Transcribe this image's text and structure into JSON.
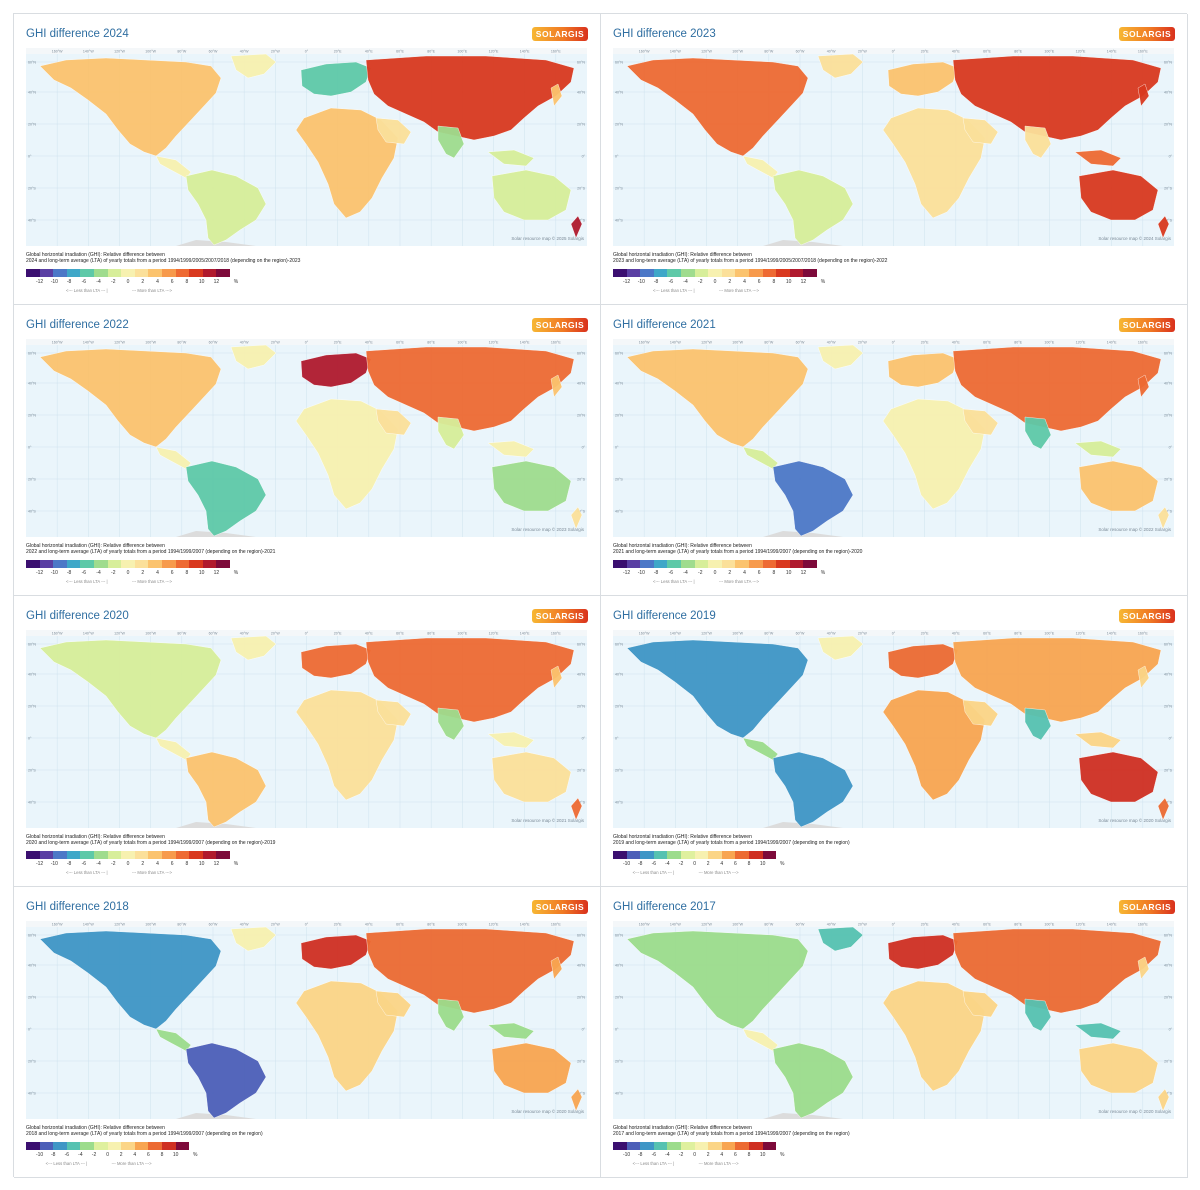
{
  "brand_label": "SOLARGIS",
  "palette_12": [
    "#3b0f70",
    "#5a3fa3",
    "#4c78c7",
    "#3fa7c8",
    "#5ec9a8",
    "#9fdc8e",
    "#d7ee9a",
    "#f7f1b0",
    "#fbe09a",
    "#fbc36e",
    "#f79a4c",
    "#ee6a33",
    "#d9391f",
    "#b01a2e",
    "#7d0a3a"
  ],
  "palette_10": [
    "#3b0f70",
    "#4c5fb8",
    "#3f96c6",
    "#56c2b1",
    "#9cdc8c",
    "#dff09e",
    "#f7f1b0",
    "#fbd587",
    "#f8a551",
    "#ec6a32",
    "#cf2f22",
    "#7d0a3a"
  ],
  "panels": [
    {
      "title": "GHI difference 2024",
      "desc1": "Global horizontal irradiation (GHI): Relative difference between",
      "desc2": "2024 and long-term average (LTA) of yearly totals from a period 1994/1999/2005/2007/2018 (depending on the region)-2023",
      "credit": "Solar resource map © 2025 Solargis",
      "ticks": [
        "-12",
        "-10",
        "-8",
        "-6",
        "-4",
        "-2",
        "0",
        "2",
        "4",
        "6",
        "8",
        "10",
        "12",
        "%"
      ],
      "less": "<--- Less than LTA --- |",
      "more": "--- More than LTA --->",
      "scale": 12
    },
    {
      "title": "GHI difference 2023",
      "desc1": "Global horizontal irradiation (GHI): Relative difference between",
      "desc2": "2023 and long-term average (LTA) of yearly totals from a period 1994/1999/2005/2007/2018 (depending on the region)-2022",
      "credit": "Solar resource map © 2024 Solargis",
      "ticks": [
        "-12",
        "-10",
        "-8",
        "-6",
        "-4",
        "-2",
        "0",
        "2",
        "4",
        "6",
        "8",
        "10",
        "12",
        "%"
      ],
      "less": "<--- Less than LTA --- |",
      "more": "--- More than LTA --->",
      "scale": 12
    },
    {
      "title": "GHI difference 2022",
      "desc1": "Global horizontal irradiation (GHI): Relative difference between",
      "desc2": "2022 and long-term average (LTA) of yearly totals from a period 1994/1999/2007 (depending on the region)-2021",
      "credit": "Solar resource map © 2023 Solargis",
      "ticks": [
        "-12",
        "-10",
        "-8",
        "-6",
        "-4",
        "-2",
        "0",
        "2",
        "4",
        "6",
        "8",
        "10",
        "12",
        "%"
      ],
      "less": "<--- Less than LTA --- |",
      "more": "--- More than LTA --->",
      "scale": 12
    },
    {
      "title": "GHI difference 2021",
      "desc1": "Global horizontal irradiation (GHI): Relative difference between",
      "desc2": "2021 and long-term average (LTA) of yearly totals from a period 1994/1999/2007 (depending on the region)-2020",
      "credit": "Solar resource map © 2022 Solargis",
      "ticks": [
        "-12",
        "-10",
        "-8",
        "-6",
        "-4",
        "-2",
        "0",
        "2",
        "4",
        "6",
        "8",
        "10",
        "12",
        "%"
      ],
      "less": "<--- Less than LTA --- |",
      "more": "--- More than LTA --->",
      "scale": 12
    },
    {
      "title": "GHI difference 2020",
      "desc1": "Global horizontal irradiation (GHI): Relative difference between",
      "desc2": "2020 and long-term average (LTA) of yearly totals from a period 1994/1999/2007 (depending on the region)-2019",
      "credit": "Solar resource map © 2021 Solargis",
      "ticks": [
        "-12",
        "-10",
        "-8",
        "-6",
        "-4",
        "-2",
        "0",
        "2",
        "4",
        "6",
        "8",
        "10",
        "12",
        "%"
      ],
      "less": "<--- Less than LTA --- |",
      "more": "--- More than LTA --->",
      "scale": 12
    },
    {
      "title": "GHI difference 2019",
      "desc1": "Global horizontal irradiation (GHI): Relative difference between",
      "desc2": "2019 and long-term average (LTA) of yearly totals from a period 1994/1999/2007 (depending on the region)",
      "credit": "Solar resource map © 2020 Solargis",
      "ticks": [
        "-10",
        "-8",
        "-6",
        "-4",
        "-2",
        "0",
        "2",
        "4",
        "6",
        "8",
        "10",
        "%"
      ],
      "less": "<--- Less than LTA --- |",
      "more": "--- More than LTA --->",
      "scale": 10
    },
    {
      "title": "GHI difference 2018",
      "desc1": "Global horizontal irradiation (GHI): Relative difference between",
      "desc2": "2018 and long-term average (LTA) of yearly totals from a period 1994/1999/2007 (depending on the region)",
      "credit": "Solar resource map © 2020 Solargis",
      "ticks": [
        "-10",
        "-8",
        "-6",
        "-4",
        "-2",
        "0",
        "2",
        "4",
        "6",
        "8",
        "10",
        "%"
      ],
      "less": "<--- Less than LTA --- |",
      "more": "--- More than LTA --->",
      "scale": 10
    },
    {
      "title": "GHI difference 2017",
      "desc1": "Global horizontal irradiation (GHI): Relative difference between",
      "desc2": "2017 and long-term average (LTA) of yearly totals from a period 1994/1999/2007 (depending on the region)",
      "credit": "Solar resource map © 2020 Solargis",
      "ticks": [
        "-10",
        "-8",
        "-6",
        "-4",
        "-2",
        "0",
        "2",
        "4",
        "6",
        "8",
        "10",
        "%"
      ],
      "less": "<--- Less than LTA --- |",
      "more": "--- More than LTA --->",
      "scale": 10
    }
  ],
  "map_lon_labels": [
    "160°W",
    "140°W",
    "120°W",
    "100°W",
    "80°W",
    "60°W",
    "40°W",
    "20°W",
    "0°",
    "20°E",
    "40°E",
    "60°E",
    "80°E",
    "100°E",
    "120°E",
    "140°E",
    "160°E"
  ],
  "map_lat_labels": [
    "60°N",
    "40°N",
    "20°N",
    "0°",
    "20°S",
    "40°S"
  ]
}
